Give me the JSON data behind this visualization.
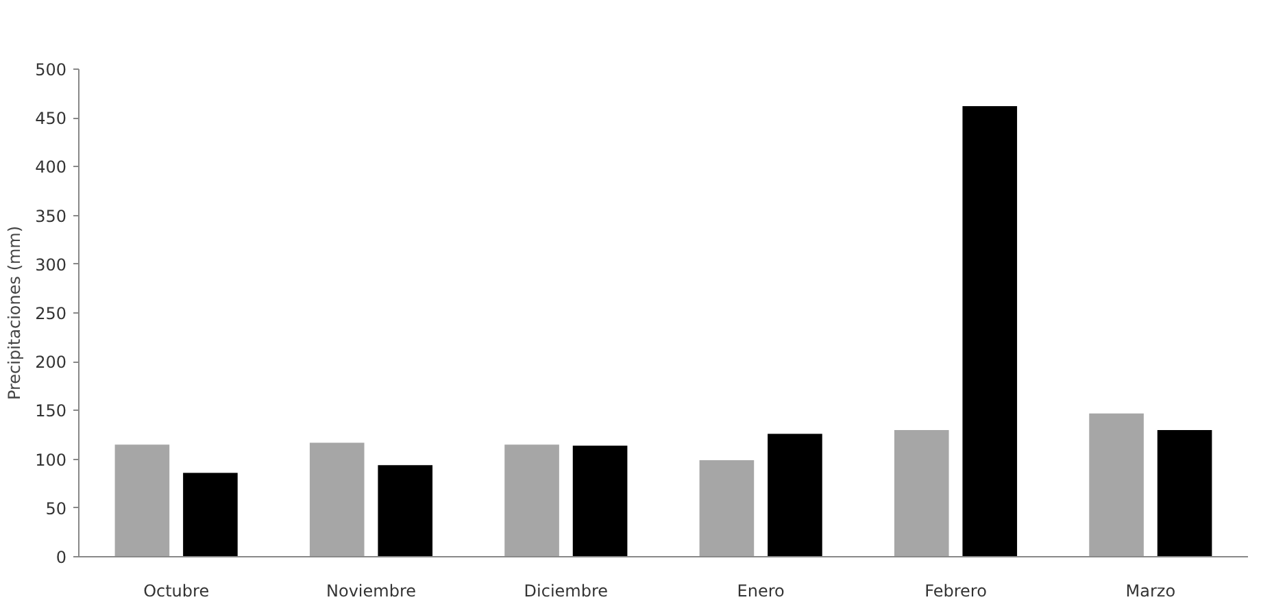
{
  "chart_data": {
    "type": "bar",
    "ylabel": "Precipitaciones (mm)",
    "categories": [
      "Octubre",
      "Noviembre",
      "Diciembre",
      "Enero",
      "Febrero",
      "Marzo"
    ],
    "series": [
      {
        "color": "#a6a6a6",
        "values": [
          115,
          117,
          115,
          99,
          130,
          147
        ]
      },
      {
        "color": "#000000",
        "values": [
          86,
          94,
          114,
          126,
          462,
          130
        ]
      }
    ],
    "ylim": [
      0,
      500
    ],
    "yticks": [
      0,
      50,
      100,
      150,
      200,
      250,
      300,
      350,
      400,
      450,
      500
    ]
  }
}
